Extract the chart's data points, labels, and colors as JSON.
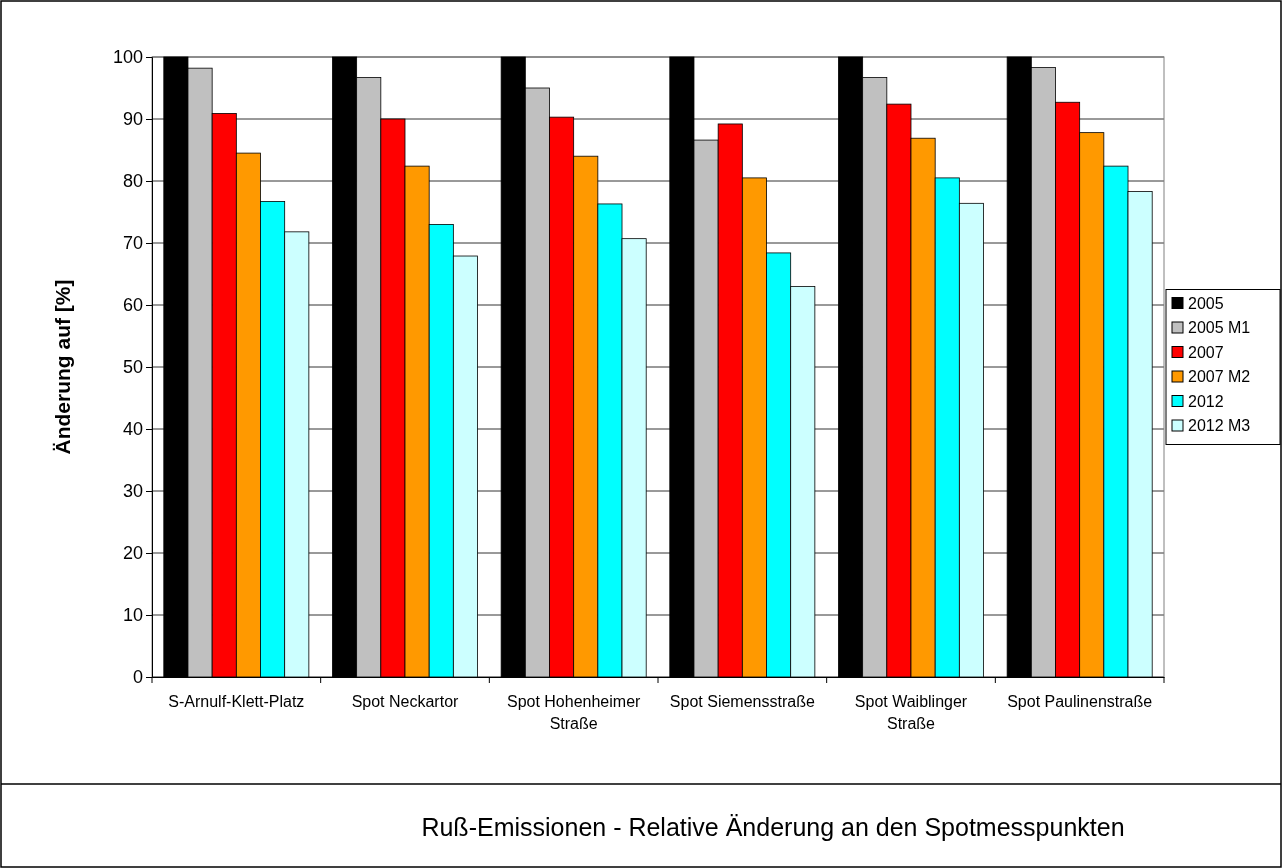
{
  "chart_data": {
    "type": "bar",
    "title": "Ruß-Emissionen - Relative Änderung an den Spotmesspunkten",
    "ylabel": "Änderung auf [%]",
    "categories": [
      "S-Arnulf-Klett-Platz",
      "Spot Neckartor",
      "Spot Hohenheimer Straße",
      "Spot Siemensstraße",
      "Spot Waiblinger Straße",
      "Spot Paulinenstraße"
    ],
    "series": [
      {
        "name": "2005",
        "color": "#000000",
        "values": [
          100,
          100,
          100,
          100,
          100,
          100
        ]
      },
      {
        "name": "2005 M1",
        "color": "#c0c0c0",
        "values": [
          98.2,
          96.7,
          95.0,
          86.6,
          96.7,
          98.3
        ]
      },
      {
        "name": "2007",
        "color": "#ff0000",
        "values": [
          90.9,
          90.0,
          90.3,
          89.2,
          92.4,
          92.7
        ]
      },
      {
        "name": "2007 M2",
        "color": "#ff9900",
        "values": [
          84.5,
          82.4,
          84.0,
          80.5,
          86.9,
          87.8
        ]
      },
      {
        "name": "2012",
        "color": "#00ffff",
        "values": [
          76.7,
          73.0,
          76.3,
          68.4,
          80.5,
          82.4
        ]
      },
      {
        "name": "2012 M3",
        "color": "#ccffff",
        "values": [
          71.8,
          67.9,
          70.7,
          63.0,
          76.4,
          78.3
        ]
      }
    ],
    "ylim": [
      0,
      100
    ],
    "yticks": [
      0,
      10,
      20,
      30,
      40,
      50,
      60,
      70,
      80,
      90,
      100
    ],
    "grid": "y",
    "legend": "right"
  }
}
